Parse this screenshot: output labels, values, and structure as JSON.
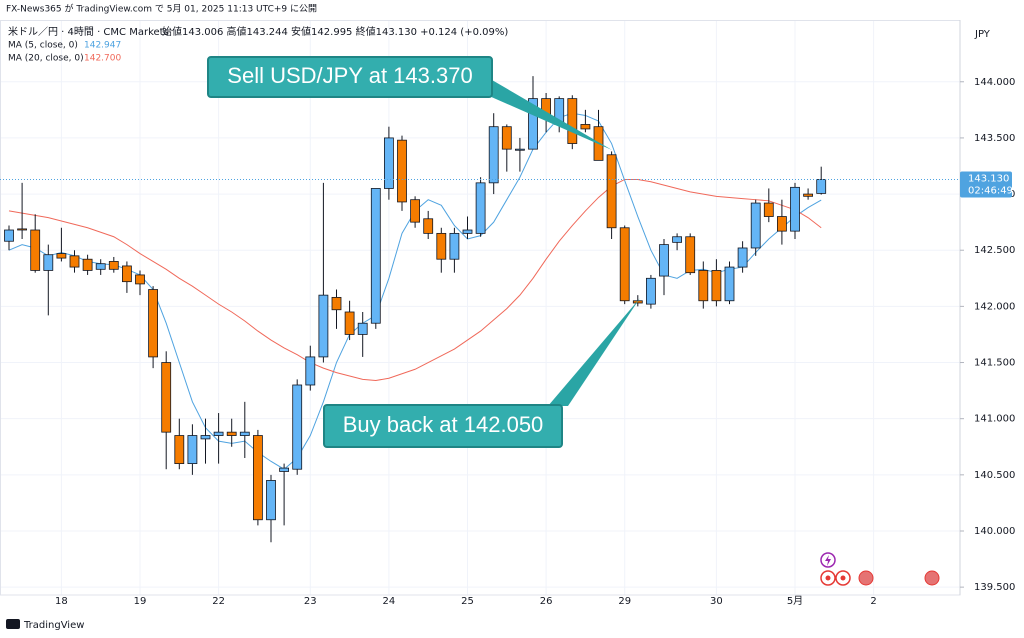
{
  "header": {
    "published": "FX-News365 が TradingView.com で 5月 01, 2025 11:13 UTC+9 に公開",
    "footer": "TradingView"
  },
  "chart_data": {
    "type": "candlestick",
    "symbol": "米ドル／円 · 4時間 · CMC Markets",
    "ohlc_text": "始値143.006 高値143.244 安値142.995 終値143.130 +0.124 (+0.09%)",
    "currency": "JPY",
    "last_price_label": "143.130",
    "countdown": "02:46:49",
    "annotations": [
      "Sell USD/JPY at 143.370",
      "Buy back at 142.050"
    ],
    "up_color": "#64b5f6",
    "down_color": "#f57c00",
    "categories": [
      null,
      null,
      null,
      null,
      "18",
      null,
      null,
      null,
      null,
      null,
      "19",
      null,
      null,
      null,
      null,
      null,
      "22",
      null,
      null,
      null,
      null,
      null,
      null,
      "23",
      null,
      null,
      null,
      null,
      null,
      "24",
      null,
      null,
      null,
      null,
      null,
      "25",
      null,
      null,
      null,
      null,
      null,
      "26",
      null,
      null,
      null,
      null,
      null,
      "29",
      null,
      null,
      null,
      null,
      null,
      null,
      "30",
      null,
      null,
      null,
      null,
      null,
      "5月",
      null,
      null,
      null,
      null,
      null,
      "2",
      null,
      null,
      null,
      null,
      null,
      null
    ],
    "open": [
      142.58,
      142.69,
      142.68,
      142.32,
      142.47,
      142.45,
      142.42,
      142.33,
      142.4,
      142.36,
      142.28,
      142.15,
      141.5,
      140.85,
      140.6,
      140.82,
      140.85,
      140.88,
      140.85,
      140.85,
      140.1,
      140.53,
      140.55,
      141.3,
      141.55,
      142.08,
      141.95,
      141.75,
      141.85,
      143.05,
      143.48,
      142.95,
      142.78,
      142.65,
      142.42,
      142.65,
      142.65,
      143.1,
      143.6,
      143.39,
      143.4,
      143.85,
      143.62,
      143.85,
      143.62,
      143.6,
      143.35,
      142.7,
      142.05,
      142.02,
      142.27,
      142.57,
      142.62,
      142.32,
      142.32,
      142.05,
      142.35,
      142.52,
      142.92,
      142.8,
      142.67,
      143.0,
      143.006,
      null,
      null,
      null,
      null,
      null,
      null,
      null,
      null,
      null,
      null
    ],
    "high": [
      142.72,
      143.1,
      142.82,
      142.55,
      142.7,
      142.5,
      142.46,
      142.42,
      142.44,
      142.4,
      142.32,
      142.18,
      141.6,
      141.0,
      140.95,
      141.0,
      141.05,
      141.0,
      141.15,
      140.9,
      140.5,
      140.6,
      141.35,
      141.65,
      143.1,
      142.15,
      142.05,
      141.95,
      143.05,
      143.6,
      143.52,
      142.98,
      142.85,
      142.7,
      142.7,
      142.8,
      143.15,
      143.72,
      143.62,
      143.5,
      144.05,
      143.9,
      143.87,
      143.88,
      143.75,
      143.75,
      143.38,
      142.72,
      142.1,
      142.28,
      142.6,
      142.65,
      142.65,
      142.4,
      142.42,
      142.4,
      142.58,
      142.95,
      143.05,
      142.95,
      143.1,
      143.05,
      143.244,
      null,
      null,
      null,
      null,
      null,
      null,
      null,
      null,
      null,
      null
    ],
    "low": [
      142.5,
      142.6,
      142.3,
      141.92,
      142.4,
      142.3,
      142.28,
      142.28,
      142.3,
      142.12,
      142.1,
      141.45,
      140.55,
      140.55,
      140.5,
      140.6,
      140.6,
      140.75,
      140.65,
      140.05,
      139.9,
      140.05,
      140.5,
      141.25,
      141.5,
      141.8,
      141.7,
      141.55,
      141.8,
      142.95,
      142.85,
      142.7,
      142.6,
      142.3,
      142.3,
      142.6,
      142.62,
      143.0,
      143.2,
      143.2,
      143.4,
      143.55,
      143.55,
      143.4,
      143.55,
      143.3,
      142.6,
      142.02,
      142.0,
      141.98,
      142.1,
      142.5,
      142.28,
      141.98,
      142.0,
      142.02,
      142.3,
      142.45,
      142.75,
      142.55,
      142.6,
      142.95,
      142.995,
      null,
      null,
      null,
      null,
      null,
      null,
      null,
      null,
      null,
      null
    ],
    "close": [
      142.68,
      142.68,
      142.32,
      142.46,
      142.43,
      142.35,
      142.32,
      142.38,
      142.33,
      142.22,
      142.2,
      141.55,
      140.88,
      140.6,
      140.85,
      140.85,
      140.88,
      140.85,
      140.88,
      140.1,
      140.45,
      140.56,
      141.3,
      141.55,
      142.1,
      141.97,
      141.75,
      141.85,
      143.05,
      143.5,
      142.93,
      142.75,
      142.65,
      142.42,
      142.65,
      142.68,
      143.1,
      143.6,
      143.4,
      143.4,
      143.85,
      143.7,
      143.85,
      143.45,
      143.58,
      143.3,
      142.7,
      142.05,
      142.03,
      142.25,
      142.55,
      142.62,
      142.3,
      142.05,
      142.05,
      142.35,
      142.52,
      142.92,
      142.8,
      142.67,
      143.06,
      142.98,
      143.13,
      null,
      null,
      null,
      null,
      null,
      null,
      null,
      null,
      null,
      null
    ],
    "series": [
      {
        "name": "MA (5, close, 0)",
        "legend_value": "142.947",
        "color": "#4fa3e0",
        "values": [
          142.5,
          142.55,
          142.52,
          142.45,
          142.48,
          142.45,
          142.4,
          142.38,
          142.37,
          142.33,
          142.28,
          142.15,
          141.85,
          141.5,
          141.15,
          140.92,
          140.8,
          140.78,
          140.8,
          140.7,
          140.62,
          140.55,
          140.65,
          140.85,
          141.15,
          141.5,
          141.75,
          141.85,
          141.92,
          142.25,
          142.65,
          142.85,
          142.95,
          142.9,
          142.72,
          142.6,
          142.63,
          142.75,
          142.95,
          143.15,
          143.4,
          143.55,
          143.68,
          143.72,
          143.7,
          143.65,
          143.45,
          143.12,
          142.8,
          142.5,
          142.28,
          142.25,
          142.32,
          142.33,
          142.3,
          142.33,
          142.35,
          142.48,
          142.6,
          142.7,
          142.8,
          142.88,
          142.947,
          null,
          null,
          null,
          null,
          null,
          null,
          null,
          null,
          null,
          null
        ]
      },
      {
        "name": "MA (20, close, 0)",
        "legend_value": "142.700",
        "color": "#f0695a",
        "values": [
          142.85,
          142.83,
          142.81,
          142.79,
          142.76,
          142.73,
          142.7,
          142.66,
          142.62,
          142.55,
          142.47,
          142.4,
          142.33,
          142.25,
          142.18,
          142.1,
          142.02,
          141.95,
          141.87,
          141.78,
          141.7,
          141.63,
          141.57,
          141.5,
          141.45,
          141.41,
          141.38,
          141.35,
          141.34,
          141.36,
          141.4,
          141.44,
          141.5,
          141.56,
          141.62,
          141.7,
          141.78,
          141.88,
          141.98,
          142.1,
          142.25,
          142.42,
          142.58,
          142.72,
          142.85,
          142.97,
          143.07,
          143.13,
          143.13,
          143.11,
          143.08,
          143.05,
          143.02,
          143.0,
          142.98,
          142.97,
          142.96,
          142.95,
          142.94,
          142.9,
          142.86,
          142.79,
          142.7,
          null,
          null,
          null,
          null,
          null,
          null,
          null,
          null,
          null,
          null
        ]
      }
    ],
    "ylim": [
      139.43,
      144.55
    ],
    "yticks": [
      {
        "value": 139.5,
        "label": "139.500"
      },
      {
        "value": 140,
        "label": "140.000"
      },
      {
        "value": 140.5,
        "label": "140.500"
      },
      {
        "value": 141,
        "label": "141.000"
      },
      {
        "value": 141.5,
        "label": "141.500"
      },
      {
        "value": 142,
        "label": "142.000"
      },
      {
        "value": 142.5,
        "label": "142.500"
      },
      {
        "value": 143,
        "label": "143.000"
      },
      {
        "value": 143.5,
        "label": "143.500"
      },
      {
        "value": 144,
        "label": "144.000"
      }
    ],
    "grid": true
  }
}
